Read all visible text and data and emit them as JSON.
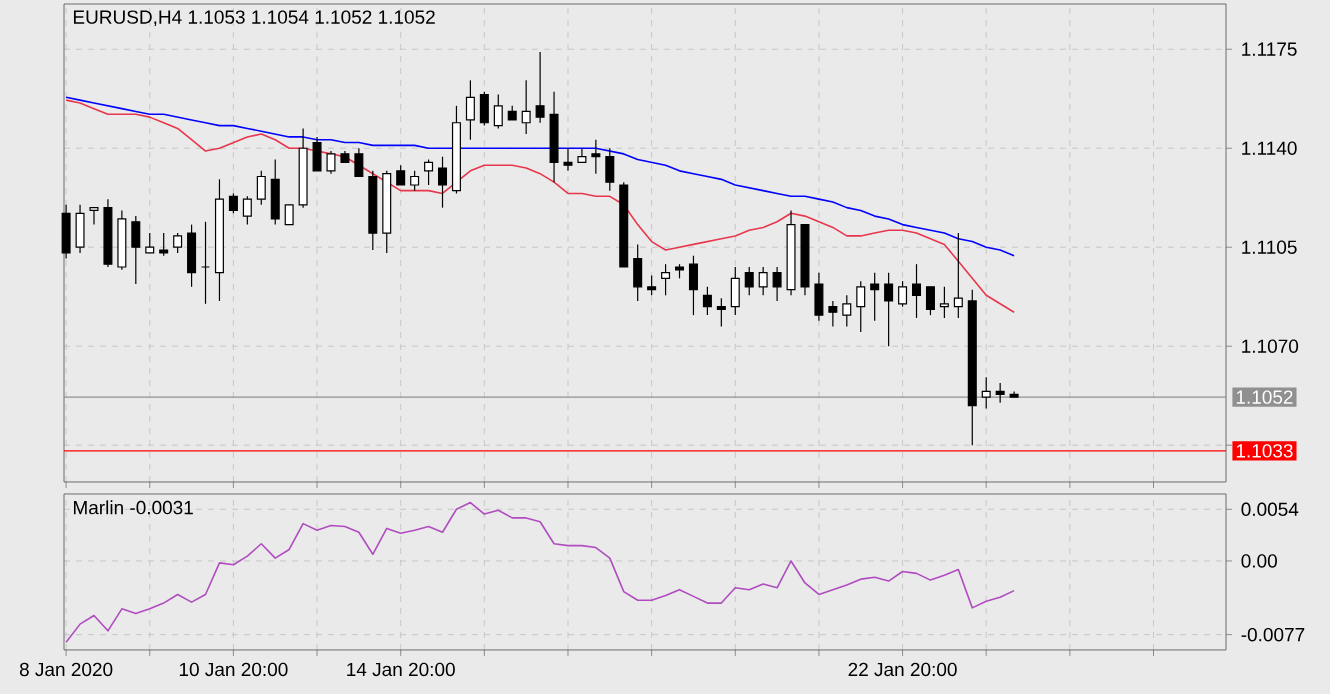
{
  "chart_data": [
    {
      "type": "candlestick",
      "title": "EURUSD,H4  1.1053 1.1054 1.1052 1.1052",
      "categories": [
        null,
        null,
        null,
        null,
        null,
        null,
        null,
        null,
        null,
        null,
        null,
        null,
        null,
        null,
        null,
        null,
        null,
        null,
        null,
        null,
        null,
        null,
        null,
        null,
        null,
        null,
        null,
        null,
        null,
        null,
        null,
        null,
        null,
        null,
        null,
        null,
        null,
        null,
        null,
        null,
        null,
        null,
        null,
        null,
        null,
        null,
        null,
        null,
        null,
        null,
        null,
        null,
        null,
        null,
        null,
        null,
        null,
        null,
        null,
        null,
        null,
        null,
        null,
        null,
        null,
        null,
        null,
        null,
        null,
        null,
        null,
        null,
        null,
        null,
        null,
        null,
        null,
        null,
        null,
        null,
        null,
        null,
        null,
        null
      ],
      "ohlc": [
        [
          1.1117,
          1.112,
          1.1101,
          1.1103
        ],
        [
          1.1105,
          1.112,
          1.1103,
          1.1117
        ],
        [
          1.1118,
          1.1119,
          1.1113,
          1.1119
        ],
        [
          1.1119,
          1.1122,
          1.1098,
          1.1099
        ],
        [
          1.1098,
          1.1118,
          1.1097,
          1.1115
        ],
        [
          1.1114,
          1.1116,
          1.1092,
          1.1105
        ],
        [
          1.1103,
          1.111,
          1.1103,
          1.1105
        ],
        [
          1.1104,
          1.111,
          1.1102,
          1.1103
        ],
        [
          1.1105,
          1.111,
          1.1103,
          1.1109
        ],
        [
          1.111,
          1.1113,
          1.1091,
          1.1096
        ],
        [
          1.1098,
          1.1114,
          1.1085,
          1.1098
        ],
        [
          1.1096,
          1.1129,
          1.1086,
          1.1122
        ],
        [
          1.1123,
          1.1124,
          1.1117,
          1.1118
        ],
        [
          1.1116,
          1.1123,
          1.1113,
          1.1122
        ],
        [
          1.1122,
          1.1132,
          1.112,
          1.113
        ],
        [
          1.1129,
          1.1136,
          1.1113,
          1.1115
        ],
        [
          1.1113,
          1.112,
          1.1113,
          1.112
        ],
        [
          1.112,
          1.1147,
          1.1119,
          1.114
        ],
        [
          1.1142,
          1.1144,
          1.1132,
          1.1132
        ],
        [
          1.1132,
          1.1139,
          1.1131,
          1.1138
        ],
        [
          1.1138,
          1.1139,
          1.1135,
          1.1135
        ],
        [
          1.1138,
          1.114,
          1.113,
          1.113
        ],
        [
          1.113,
          1.1132,
          1.1104,
          1.111
        ],
        [
          1.111,
          1.1132,
          1.1103,
          1.1131
        ],
        [
          1.1132,
          1.1134,
          1.1127,
          1.1127
        ],
        [
          1.1127,
          1.1132,
          1.1125,
          1.113
        ],
        [
          1.1132,
          1.1136,
          1.1127,
          1.1135
        ],
        [
          1.1133,
          1.1137,
          1.1119,
          1.1127
        ],
        [
          1.1125,
          1.1155,
          1.1124,
          1.1149
        ],
        [
          1.115,
          1.1164,
          1.1143,
          1.1158
        ],
        [
          1.1159,
          1.116,
          1.1148,
          1.1149
        ],
        [
          1.1148,
          1.1159,
          1.1147,
          1.1155
        ],
        [
          1.1153,
          1.1155,
          1.115,
          1.115
        ],
        [
          1.1149,
          1.1164,
          1.1145,
          1.1153
        ],
        [
          1.1155,
          1.1174,
          1.1149,
          1.1151
        ],
        [
          1.1152,
          1.116,
          1.1128,
          1.1135
        ],
        [
          1.1135,
          1.114,
          1.1132,
          1.1134
        ],
        [
          1.1135,
          1.114,
          1.1135,
          1.1137
        ],
        [
          1.1138,
          1.1143,
          1.1131,
          1.1137
        ],
        [
          1.1137,
          1.114,
          1.1125,
          1.1128
        ],
        [
          1.1127,
          1.1128,
          1.1098,
          1.1098
        ],
        [
          1.1101,
          1.1106,
          1.1086,
          1.1091
        ],
        [
          1.1091,
          1.1095,
          1.1088,
          1.109
        ],
        [
          1.1094,
          1.1099,
          1.1088,
          1.1096
        ],
        [
          1.1098,
          1.1099,
          1.1094,
          1.1097
        ],
        [
          1.1099,
          1.1102,
          1.1081,
          1.109
        ],
        [
          1.1088,
          1.1091,
          1.1081,
          1.1084
        ],
        [
          1.1084,
          1.1087,
          1.1077,
          1.1083
        ],
        [
          1.1084,
          1.1098,
          1.1081,
          1.1094
        ],
        [
          1.1096,
          1.1098,
          1.1088,
          1.1091
        ],
        [
          1.1091,
          1.1098,
          1.1088,
          1.1096
        ],
        [
          1.1096,
          1.1098,
          1.1086,
          1.1091
        ],
        [
          1.109,
          1.1118,
          1.1088,
          1.1113
        ],
        [
          1.1113,
          1.1113,
          1.1088,
          1.1091
        ],
        [
          1.1092,
          1.1096,
          1.1079,
          1.1081
        ],
        [
          1.1084,
          1.1086,
          1.1077,
          1.1082
        ],
        [
          1.1081,
          1.1088,
          1.1077,
          1.1085
        ],
        [
          1.1084,
          1.1093,
          1.1075,
          1.1091
        ],
        [
          1.1092,
          1.1096,
          1.1079,
          1.109
        ],
        [
          1.1092,
          1.1096,
          1.107,
          1.1086
        ],
        [
          1.1085,
          1.1093,
          1.1084,
          1.1091
        ],
        [
          1.1092,
          1.1099,
          1.108,
          1.1088
        ],
        [
          1.1091,
          1.1091,
          1.1081,
          1.1083
        ],
        [
          1.1084,
          1.1091,
          1.108,
          1.1085
        ],
        [
          1.1084,
          1.111,
          1.108,
          1.1087
        ],
        [
          1.1086,
          1.109,
          1.1035,
          1.1049
        ],
        [
          1.1052,
          1.1059,
          1.1048,
          1.1054
        ],
        [
          1.1054,
          1.1057,
          1.105,
          1.1053
        ],
        [
          1.1053,
          1.1054,
          1.1052,
          1.1052
        ],
        null,
        null,
        null,
        null,
        null,
        null,
        null,
        null,
        null,
        null,
        null,
        null,
        null,
        null,
        null
      ],
      "series": [
        {
          "type": "line",
          "color": "#0000ff",
          "values": [
            1.1158,
            1.1157,
            1.1156,
            1.1155,
            1.1154,
            1.1153,
            1.1152,
            1.1152,
            1.1151,
            1.115,
            1.1149,
            1.1148,
            1.1148,
            1.1147,
            1.1146,
            1.1145,
            1.1144,
            1.1144,
            1.1143,
            1.1143,
            1.1142,
            1.1142,
            1.1141,
            1.1141,
            1.1141,
            1.1141,
            1.114,
            1.114,
            1.114,
            1.114,
            1.114,
            1.114,
            1.114,
            1.114,
            1.114,
            1.114,
            1.114,
            1.114,
            1.114,
            1.1139,
            1.1138,
            1.1136,
            1.1135,
            1.1134,
            1.1132,
            1.1131,
            1.113,
            1.1129,
            1.1127,
            1.1126,
            1.1125,
            1.1124,
            1.1123,
            1.1123,
            1.1122,
            1.1121,
            1.1119,
            1.1118,
            1.1116,
            1.1115,
            1.1113,
            1.1112,
            1.1111,
            1.111,
            1.1108,
            1.1107,
            1.1105,
            1.1104,
            1.1102,
            null,
            null,
            null,
            null,
            null,
            null,
            null,
            null,
            null,
            null,
            null,
            null,
            null,
            null,
            null
          ]
        },
        {
          "type": "line",
          "color": "#e8364c",
          "values": [
            1.1157,
            1.1156,
            1.1154,
            1.1152,
            1.1152,
            1.1152,
            1.1151,
            1.1149,
            1.1147,
            1.1143,
            1.1139,
            1.114,
            1.1142,
            1.1144,
            1.1145,
            1.1143,
            1.114,
            1.114,
            1.1139,
            1.1138,
            1.1137,
            1.1134,
            1.1131,
            1.1128,
            1.1125,
            1.1125,
            1.1125,
            1.1124,
            1.1128,
            1.1132,
            1.1134,
            1.1134,
            1.1134,
            1.1133,
            1.1131,
            1.1128,
            1.1124,
            1.1124,
            1.1123,
            1.1123,
            1.112,
            1.1113,
            1.1107,
            1.1104,
            1.1105,
            1.1106,
            1.1107,
            1.1108,
            1.1109,
            1.1111,
            1.1112,
            1.1114,
            1.1117,
            1.1116,
            1.1114,
            1.1112,
            1.1109,
            1.1109,
            1.111,
            1.1111,
            1.1111,
            1.111,
            1.1108,
            1.1106,
            1.11,
            1.1094,
            1.1088,
            1.1085,
            1.1082,
            null,
            null,
            null,
            null,
            null,
            null,
            null,
            null,
            null,
            null,
            null,
            null,
            null,
            null,
            null
          ]
        }
      ],
      "ylim": [
        1.1022,
        1.1191
      ],
      "yticks": [
        {
          "value": 1.1035,
          "label": null
        },
        {
          "value": 1.107,
          "label": "1.1070"
        },
        {
          "value": 1.1105,
          "label": "1.1105"
        },
        {
          "value": 1.114,
          "label": "1.1140"
        },
        {
          "value": 1.1175,
          "label": "1.1175"
        }
      ],
      "ref_lines": [
        {
          "axis": "y",
          "value": 1.1033,
          "label": "1.1033",
          "color": "#ff0000"
        },
        {
          "axis": "y",
          "value": 1.1052,
          "label": "1.1052",
          "color": "#909090"
        }
      ],
      "grid": true,
      "tick_labels": "y"
    },
    {
      "type": "line",
      "title": "Marlin -0.0031",
      "categories": [
        "8 Jan 2020",
        null,
        null,
        null,
        null,
        null,
        null,
        null,
        null,
        null,
        null,
        null,
        "10 Jan 20:00",
        null,
        null,
        null,
        null,
        null,
        null,
        null,
        null,
        null,
        null,
        null,
        "14 Jan 20:00",
        null,
        null,
        null,
        null,
        null,
        null,
        null,
        null,
        null,
        null,
        null,
        null,
        null,
        null,
        null,
        null,
        null,
        null,
        null,
        null,
        null,
        null,
        null,
        null,
        null,
        null,
        null,
        null,
        null,
        null,
        null,
        null,
        null,
        null,
        null,
        "22 Jan 20:00",
        null,
        null,
        null,
        null,
        null,
        null,
        null,
        null,
        null,
        null,
        null,
        null,
        null,
        null,
        null,
        null,
        null,
        null,
        null,
        null,
        null,
        null,
        null
      ],
      "series": [
        {
          "color": "#b04cc0",
          "values": [
            -0.0085,
            -0.0066,
            -0.0057,
            -0.0073,
            -0.005,
            -0.0055,
            -0.005,
            -0.0044,
            -0.0035,
            -0.0043,
            -0.0035,
            -0.0002,
            -0.0004,
            0.0005,
            0.0018,
            0.0003,
            0.0012,
            0.0039,
            0.0032,
            0.0037,
            0.0036,
            0.003,
            0.0007,
            0.0034,
            0.0029,
            0.0032,
            0.0036,
            0.003,
            0.0054,
            0.0061,
            0.0049,
            0.0053,
            0.0045,
            0.0045,
            0.0041,
            0.0018,
            0.0016,
            0.0016,
            0.0014,
            0.0003,
            -0.0032,
            -0.0041,
            -0.0041,
            -0.0036,
            -0.003,
            -0.0037,
            -0.0044,
            -0.0044,
            -0.0028,
            -0.003,
            -0.0024,
            -0.0028,
            0.0,
            -0.0023,
            -0.0035,
            -0.003,
            -0.0025,
            -0.0019,
            -0.0017,
            -0.0021,
            -0.0011,
            -0.0013,
            -0.002,
            -0.0015,
            -0.0009,
            -0.0049,
            -0.0042,
            -0.0038,
            -0.0031,
            null,
            null,
            null,
            null,
            null,
            null,
            null,
            null,
            null,
            null,
            null,
            null,
            null,
            null,
            null
          ]
        }
      ],
      "ylim": [
        -0.0093,
        0.007
      ],
      "yticks": [
        {
          "value": -0.0077,
          "label": "-0.0077"
        },
        {
          "value": 0,
          "label": "0.00"
        },
        {
          "value": 0.0054,
          "label": "0.0054"
        }
      ],
      "grid": true
    }
  ]
}
